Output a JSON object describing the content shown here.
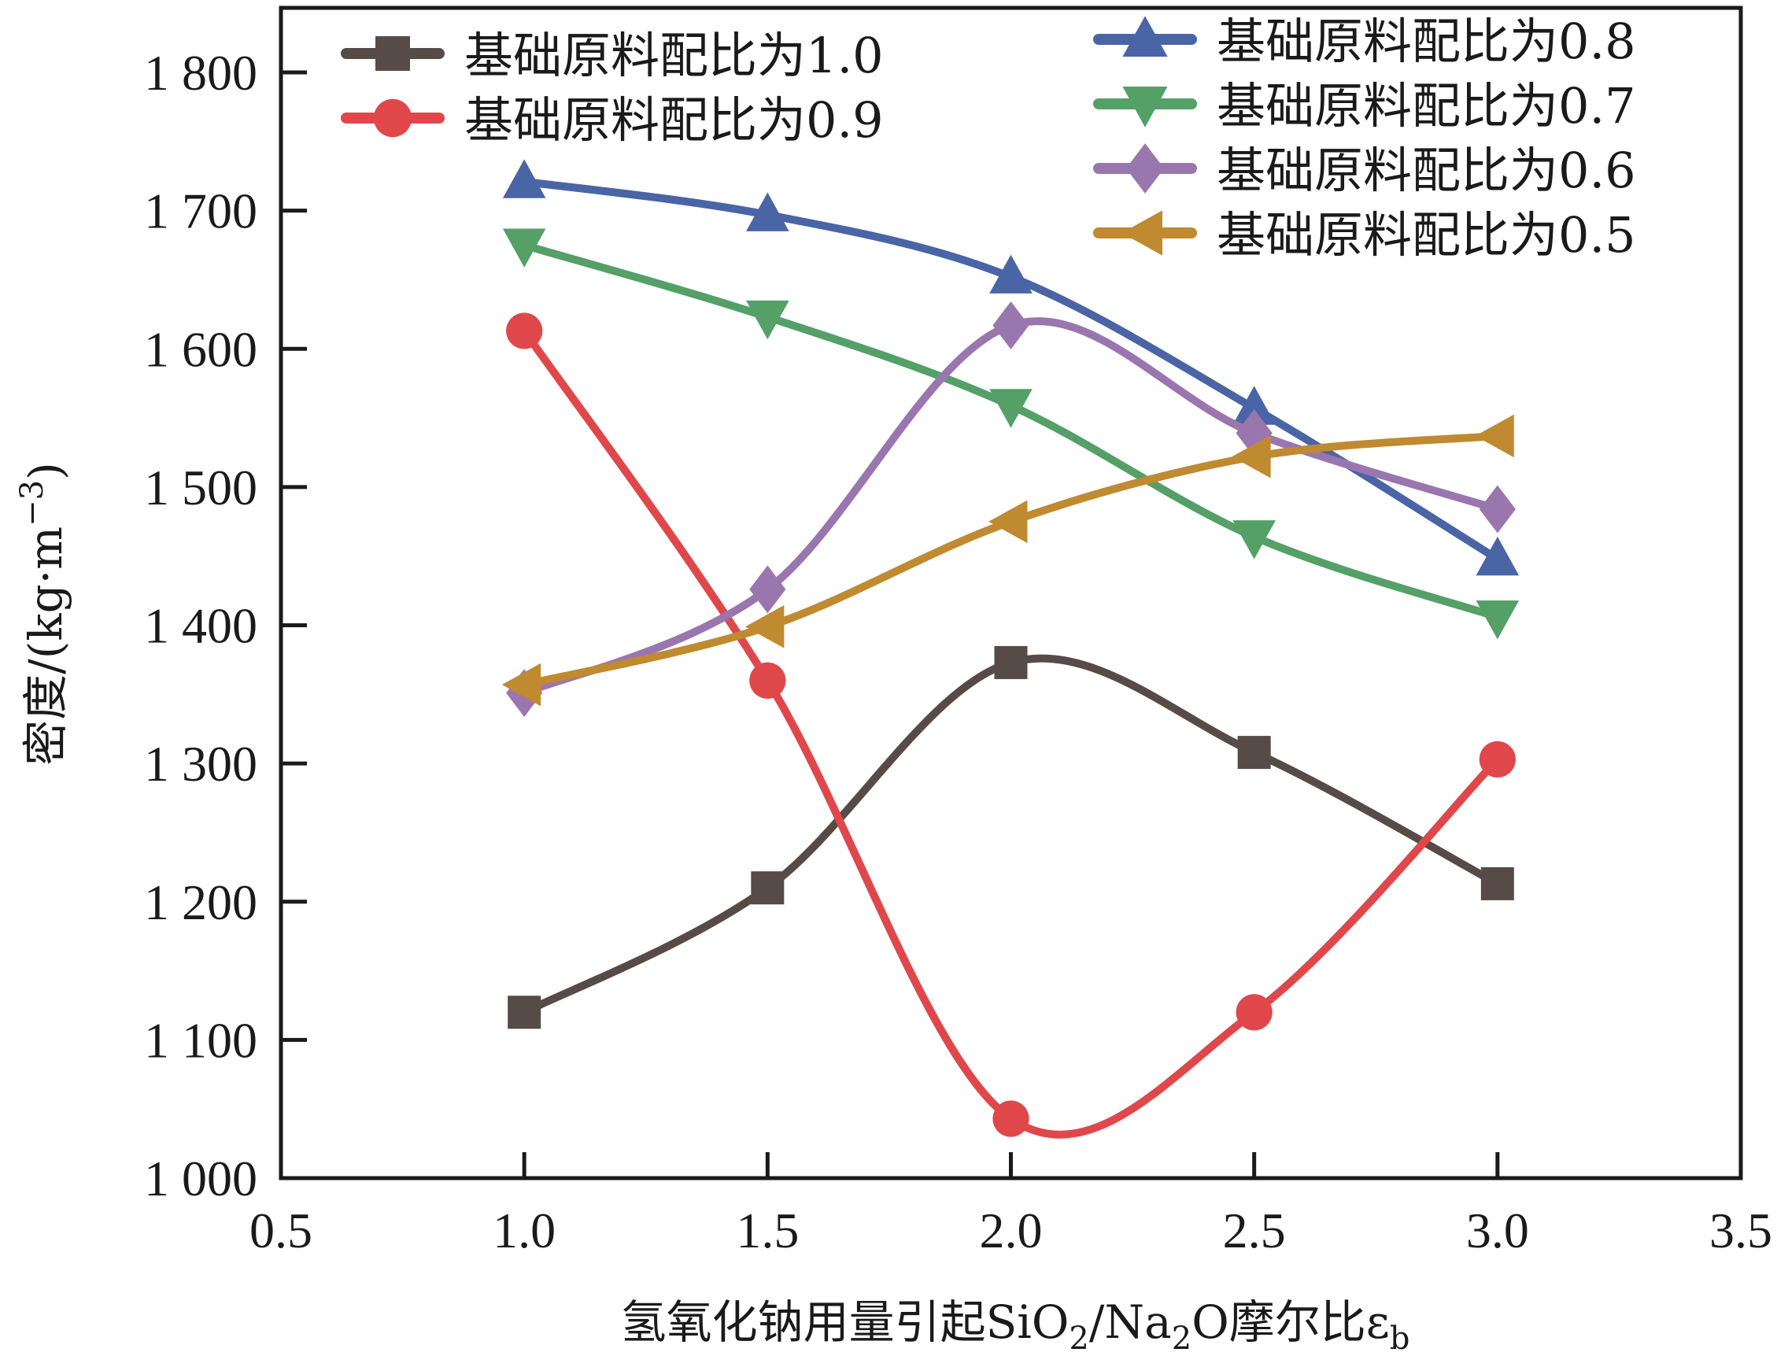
{
  "chart_data": {
    "type": "line",
    "title": "",
    "xlabel": "氢氧化钠用量引起SiO₂/Na₂O摩尔比εb",
    "xlabel_parts": {
      "main": "氢氧化钠用量引起SiO",
      "sub1": "2",
      "mid": "/Na",
      "sub2": "2",
      "end": "O摩尔比ε",
      "sub3": "b"
    },
    "ylabel": "密度/(kg·m⁻³)",
    "ylabel_parts": {
      "main": "密度/(kg·m",
      "sup": "−3",
      "end": ")"
    },
    "xlim": [
      0.5,
      3.5
    ],
    "ylim": [
      1000,
      1800
    ],
    "xticks": [
      0.5,
      1.0,
      1.5,
      2.0,
      2.5,
      3.0,
      3.5
    ],
    "xtick_labels": [
      "0.5",
      "1.0",
      "1.5",
      "2.0",
      "2.5",
      "3.0",
      "3.5"
    ],
    "yticks": [
      1000,
      1100,
      1200,
      1300,
      1400,
      1500,
      1600,
      1700,
      1800
    ],
    "ytick_labels": [
      "1 000",
      "1 100",
      "1 200",
      "1 300",
      "1 400",
      "1 500",
      "1 600",
      "1 700",
      "1 800"
    ],
    "grid": false,
    "smooth": true,
    "legend_position": "top (two columns: top-left and top-right)",
    "x": [
      1.0,
      1.5,
      2.0,
      2.5,
      3.0
    ],
    "series": [
      {
        "name": "基础原料配比为1.0",
        "marker": "square",
        "color": "#564b46",
        "values": [
          1120,
          1210,
          1373,
          1308,
          1213
        ],
        "legend_col": "left"
      },
      {
        "name": "基础原料配比为0.9",
        "marker": "circle",
        "color": "#e0474b",
        "values": [
          1613,
          1360,
          1043,
          1120,
          1303
        ],
        "legend_col": "left"
      },
      {
        "name": "基础原料配比为0.8",
        "marker": "triangle-up",
        "color": "#4a65a6",
        "values": [
          1721,
          1697,
          1652,
          1557,
          1448
        ],
        "legend_col": "right"
      },
      {
        "name": "基础原料配比为0.7",
        "marker": "triangle-down",
        "color": "#54a067",
        "values": [
          1675,
          1623,
          1559,
          1464,
          1406
        ],
        "legend_col": "right"
      },
      {
        "name": "基础原料配比为0.6",
        "marker": "diamond",
        "color": "#9a76af",
        "values": [
          1351,
          1426,
          1617,
          1539,
          1484
        ],
        "legend_col": "right"
      },
      {
        "name": "基础原料配比为0.5",
        "marker": "triangle-left",
        "color": "#c08a30",
        "values": [
          1357,
          1399,
          1475,
          1522,
          1537
        ],
        "legend_col": "right"
      }
    ]
  }
}
